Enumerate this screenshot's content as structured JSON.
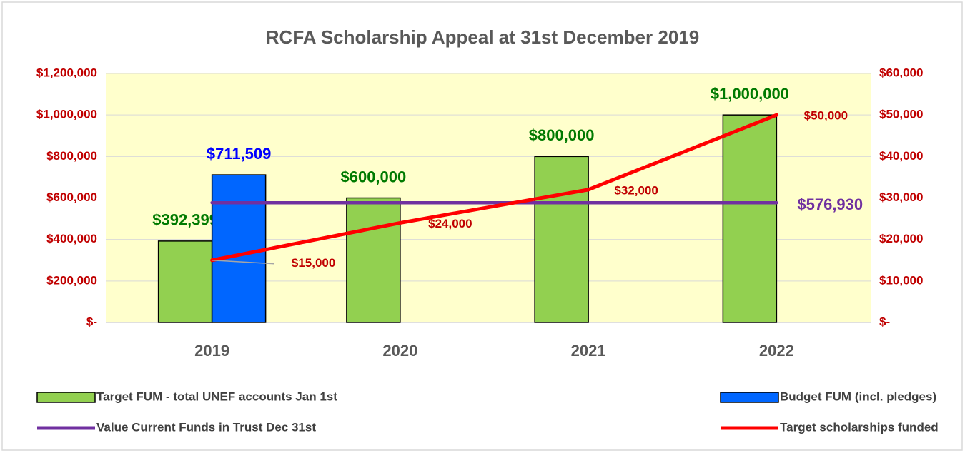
{
  "chart_data": {
    "type": "bar",
    "title": "RCFA Scholarship Appeal at 31st December 2019",
    "categories": [
      "2019",
      "2020",
      "2021",
      "2022"
    ],
    "series": [
      {
        "name": "Target FUM - total UNEF accounts Jan 1st",
        "type": "bar",
        "color": "#92d050",
        "values": [
          392399,
          600000,
          800000,
          1000000
        ],
        "value_labels": [
          "$392,399",
          "$600,000",
          "$800,000",
          "$1,000,000"
        ],
        "label_color": "#007a00"
      },
      {
        "name": "Budget FUM  (incl. pledges)",
        "type": "bar",
        "color": "#0066ff",
        "values": [
          711509,
          null,
          null,
          null
        ],
        "value_labels": [
          "$711,509",
          null,
          null,
          null
        ],
        "label_color": "#0000ff"
      },
      {
        "name": "Value Current Funds in Trust Dec 31st",
        "type": "line",
        "color": "#7030a0",
        "values": [
          576930,
          576930,
          576930,
          576930
        ],
        "value_labels": [
          null,
          null,
          null,
          "$576,930"
        ],
        "label_color": "#7030a0"
      },
      {
        "name": "Target scholarships funded",
        "type": "line",
        "color": "#ff0000",
        "axis": "y2",
        "values": [
          15000,
          24000,
          32000,
          50000
        ],
        "value_labels": [
          "$15,000",
          "$24,000",
          "$32,000",
          "$50,000"
        ],
        "label_color": "#c00000"
      }
    ],
    "ylim": [
      0,
      1200000
    ],
    "yticks": [
      {
        "value": 0,
        "label": "$-"
      },
      {
        "value": 200000,
        "label": "$200,000"
      },
      {
        "value": 400000,
        "label": "$400,000"
      },
      {
        "value": 600000,
        "label": "$600,000"
      },
      {
        "value": 800000,
        "label": "$800,000"
      },
      {
        "value": 1000000,
        "label": "$1,000,000"
      },
      {
        "value": 1200000,
        "label": "$1,200,000"
      }
    ],
    "y2lim": [
      0,
      60000
    ],
    "y2ticks": [
      {
        "value": 0,
        "label": "$-"
      },
      {
        "value": 10000,
        "label": "$10,000"
      },
      {
        "value": 20000,
        "label": "$20,000"
      },
      {
        "value": 30000,
        "label": "$30,000"
      },
      {
        "value": 40000,
        "label": "$40,000"
      },
      {
        "value": 50000,
        "label": "$50,000"
      },
      {
        "value": 60000,
        "label": "$60,000"
      }
    ],
    "grid": true,
    "legend": "bottom"
  }
}
